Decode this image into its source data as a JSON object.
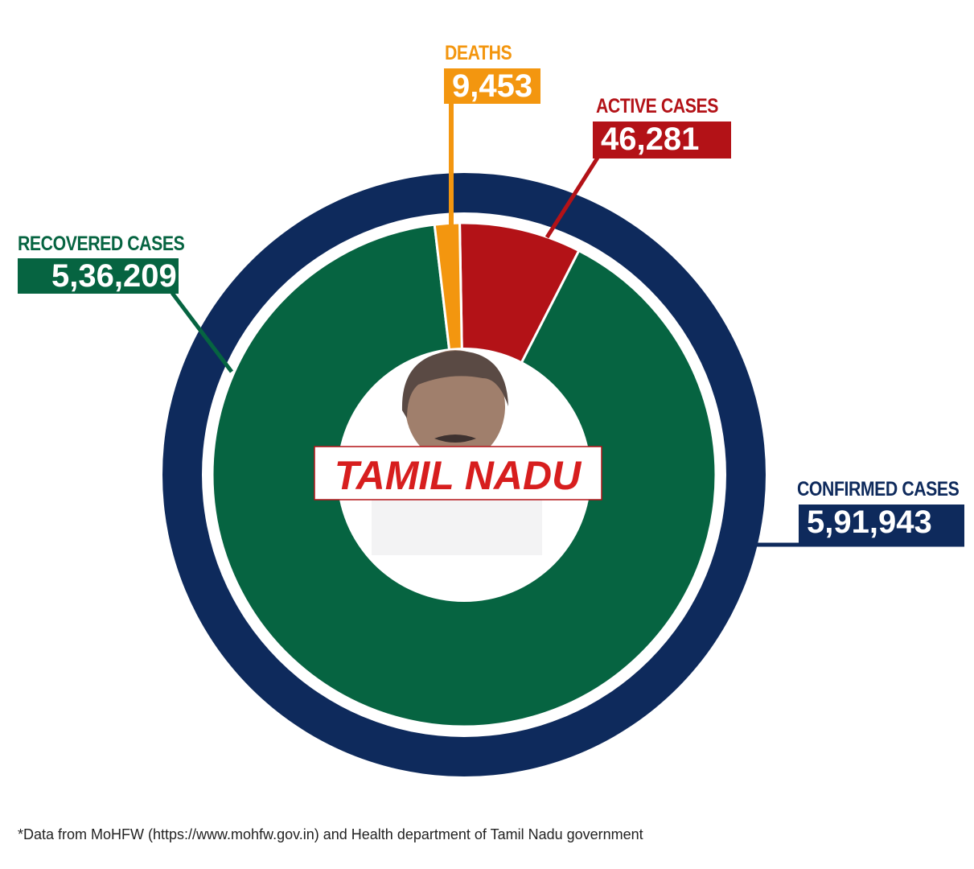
{
  "chart_data": {
    "type": "pie",
    "title": "TAMIL NADU",
    "total": {
      "name": "CONFIRMED CASES",
      "value": 591943,
      "label": "5,91,943",
      "color": "#0e2a5c"
    },
    "slices": [
      {
        "name": "ACTIVE CASES",
        "value": 46281,
        "label": "46,281",
        "color": "#b31217"
      },
      {
        "name": "RECOVERED CASES",
        "value": 536209,
        "label": "5,36,209",
        "color": "#066441"
      },
      {
        "name": "DEATHS",
        "value": 9453,
        "label": "9,453",
        "color": "#f3960f"
      }
    ]
  },
  "footnote": "*Data from MoHFW (https://www.mohfw.gov.in) and Health department of Tamil Nadu government"
}
